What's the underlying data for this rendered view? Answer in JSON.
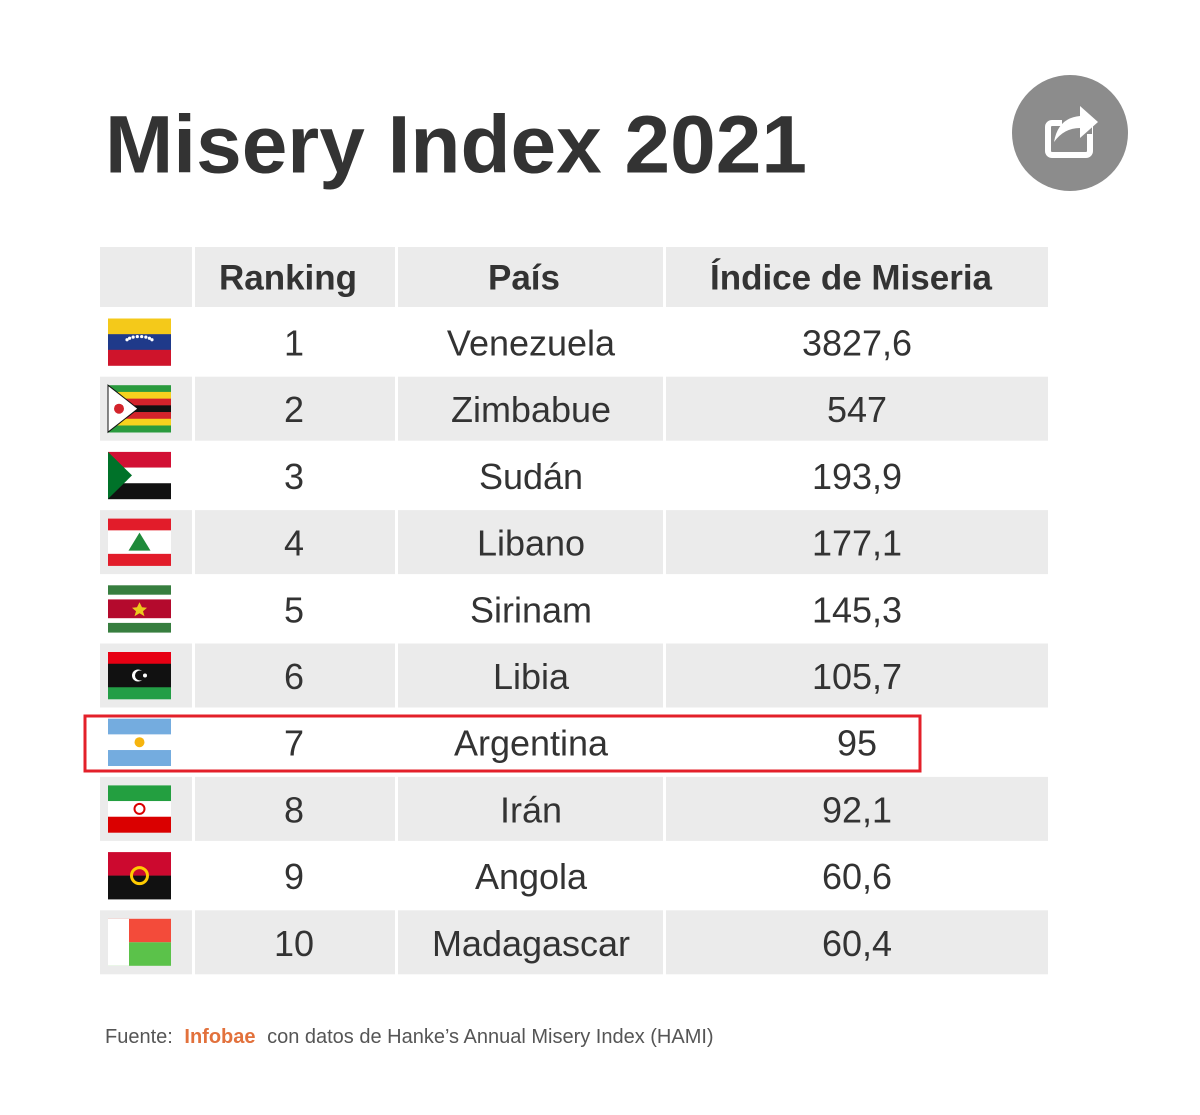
{
  "header": {
    "title": "Misery Index 2021"
  },
  "table": {
    "columns": [
      "Ranking",
      "País",
      "Índice de Miseria"
    ],
    "rows": [
      [
        "1",
        "Venezuela",
        "3827,6"
      ],
      [
        "2",
        "Zimbabue",
        "547"
      ],
      [
        "3",
        "Sudán",
        "193,9"
      ],
      [
        "4",
        "Libano",
        "177,1"
      ],
      [
        "5",
        "Sirinam",
        "145,3"
      ],
      [
        "6",
        "Libia",
        "105,7"
      ],
      [
        "7",
        "Argentina",
        "95"
      ],
      [
        "8",
        "Irán",
        "92,1"
      ],
      [
        "9",
        "Angola",
        "60,6"
      ],
      [
        "10",
        "Madagascar",
        "60,4"
      ]
    ]
  },
  "footer": {
    "label": "Fuente:",
    "source": "Infobae",
    "text": "con datos de Hanke’s Annual Misery Index (HAMI)"
  }
}
